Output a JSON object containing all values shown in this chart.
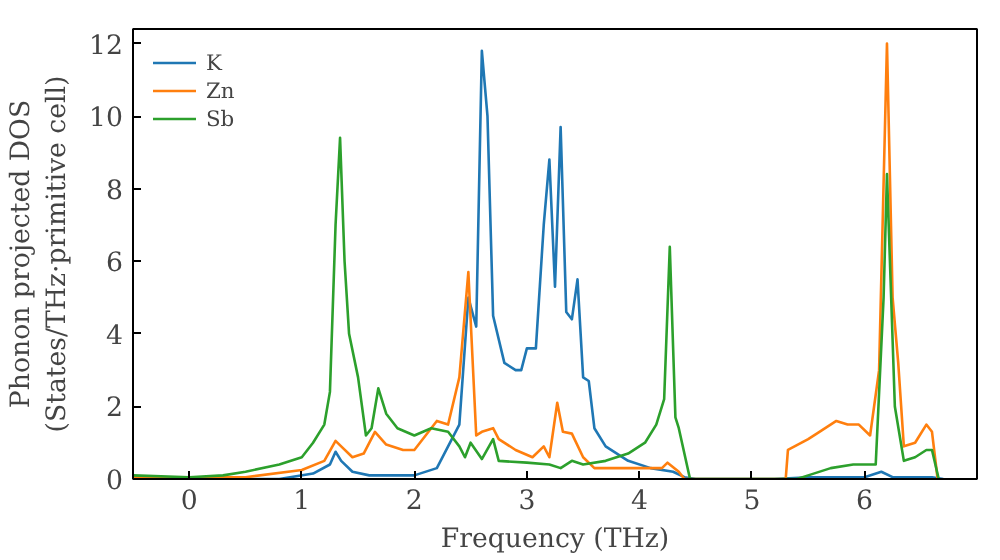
{
  "chart_data": {
    "type": "line",
    "xlabel": "Frequency (THz)",
    "ylabel": "Phonon projected DOS\n(States/THz·primitive cell)",
    "xlim": [
      -0.5,
      7.0
    ],
    "ylim": [
      0,
      12.4
    ],
    "xticks": [
      0,
      1,
      2,
      3,
      4,
      5,
      6
    ],
    "yticks": [
      0,
      2,
      4,
      6,
      8,
      10,
      12
    ],
    "grid": false,
    "legend": "top left",
    "line_style": "solid",
    "marker": "none",
    "series": [
      {
        "name": "K",
        "color": "#1f77b4",
        "x": [
          -0.5,
          0.8,
          1.1,
          1.25,
          1.3,
          1.35,
          1.45,
          1.6,
          2.0,
          2.2,
          2.4,
          2.48,
          2.55,
          2.6,
          2.65,
          2.7,
          2.8,
          2.9,
          2.95,
          3.0,
          3.08,
          3.15,
          3.2,
          3.25,
          3.3,
          3.35,
          3.4,
          3.45,
          3.5,
          3.55,
          3.6,
          3.7,
          3.9,
          4.1,
          4.3,
          4.4,
          4.5,
          5.2,
          5.5,
          6.0,
          6.15,
          6.25,
          6.6,
          6.7
        ],
        "values": [
          0,
          0,
          0.15,
          0.4,
          0.75,
          0.5,
          0.2,
          0.1,
          0.1,
          0.3,
          1.5,
          5.0,
          4.2,
          11.8,
          10,
          4.5,
          3.2,
          3.0,
          3.0,
          3.6,
          3.6,
          7.0,
          8.8,
          5.3,
          9.7,
          4.6,
          4.4,
          5.5,
          2.8,
          2.7,
          1.4,
          0.9,
          0.5,
          0.3,
          0.2,
          0.05,
          0,
          0,
          0.05,
          0.05,
          0.2,
          0.05,
          0.05,
          0
        ]
      },
      {
        "name": "Zn",
        "color": "#ff7f0e",
        "x": [
          -0.5,
          0.5,
          1.0,
          1.2,
          1.3,
          1.35,
          1.45,
          1.55,
          1.65,
          1.75,
          1.9,
          2.0,
          2.1,
          2.2,
          2.3,
          2.4,
          2.48,
          2.55,
          2.6,
          2.7,
          2.75,
          2.9,
          3.05,
          3.15,
          3.2,
          3.27,
          3.32,
          3.4,
          3.5,
          3.6,
          3.8,
          4.0,
          4.2,
          4.25,
          4.35,
          4.4,
          5.3,
          5.32,
          5.5,
          5.6,
          5.75,
          5.85,
          5.95,
          6.05,
          6.13,
          6.2,
          6.25,
          6.3,
          6.35,
          6.45,
          6.55,
          6.6,
          6.65
        ],
        "values": [
          0.05,
          0.05,
          0.25,
          0.5,
          1.05,
          0.9,
          0.6,
          0.7,
          1.3,
          0.95,
          0.8,
          0.8,
          1.2,
          1.6,
          1.5,
          2.8,
          5.7,
          1.2,
          1.3,
          1.4,
          1.1,
          0.8,
          0.6,
          0.9,
          0.6,
          2.1,
          1.3,
          1.25,
          0.6,
          0.3,
          0.3,
          0.3,
          0.3,
          0.45,
          0.2,
          0,
          0,
          0.8,
          1.1,
          1.3,
          1.6,
          1.5,
          1.5,
          1.2,
          3.0,
          12.0,
          5.0,
          3.2,
          0.9,
          1.0,
          1.5,
          1.3,
          0
        ]
      },
      {
        "name": "Sb",
        "color": "#2ca02c",
        "x": [
          -0.5,
          0.0,
          0.3,
          0.5,
          0.8,
          1.0,
          1.1,
          1.2,
          1.25,
          1.3,
          1.34,
          1.38,
          1.42,
          1.5,
          1.57,
          1.62,
          1.68,
          1.75,
          1.85,
          2.0,
          2.15,
          2.3,
          2.4,
          2.45,
          2.5,
          2.6,
          2.7,
          2.75,
          3.0,
          3.2,
          3.3,
          3.4,
          3.5,
          3.7,
          3.9,
          4.05,
          4.15,
          4.22,
          4.27,
          4.32,
          4.35,
          4.45,
          5.4,
          5.5,
          5.7,
          5.9,
          6.1,
          6.17,
          6.2,
          6.27,
          6.35,
          6.45,
          6.55,
          6.6,
          6.66
        ],
        "values": [
          0.1,
          0.05,
          0.1,
          0.2,
          0.4,
          0.6,
          1.0,
          1.5,
          2.4,
          7.0,
          9.4,
          6.0,
          4.0,
          2.8,
          1.2,
          1.4,
          2.5,
          1.8,
          1.4,
          1.2,
          1.4,
          1.3,
          0.9,
          0.6,
          1.0,
          0.55,
          1.1,
          0.5,
          0.45,
          0.4,
          0.3,
          0.5,
          0.4,
          0.5,
          0.7,
          1.0,
          1.5,
          2.2,
          6.4,
          1.7,
          1.4,
          0,
          0,
          0.1,
          0.3,
          0.4,
          0.4,
          5.0,
          8.4,
          2.0,
          0.5,
          0.6,
          0.8,
          0.8,
          0
        ]
      }
    ]
  }
}
